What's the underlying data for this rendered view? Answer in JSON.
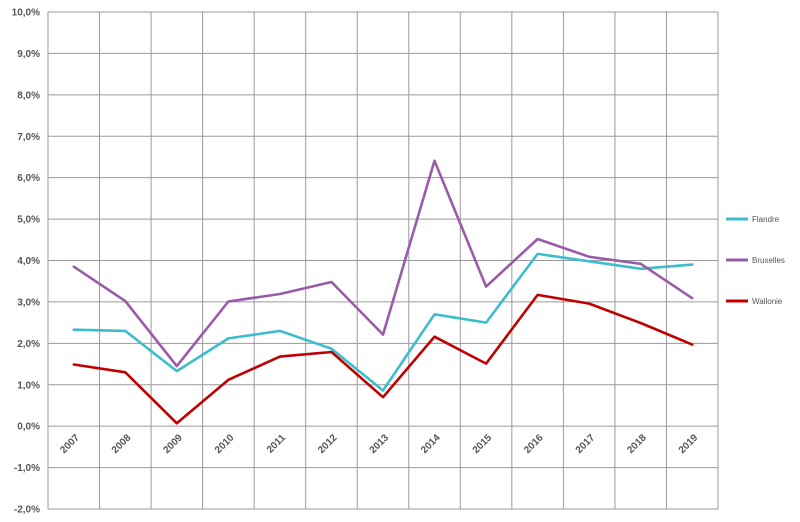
{
  "chart_data": {
    "type": "line",
    "categories": [
      "2007",
      "2008",
      "2009",
      "2010",
      "2011",
      "2012",
      "2013",
      "2014",
      "2015",
      "2016",
      "2017",
      "2018",
      "2019"
    ],
    "series": [
      {
        "name": "Flandre",
        "color": "#3dbccb",
        "values": [
          2.33,
          2.3,
          1.33,
          2.12,
          2.3,
          1.87,
          0.86,
          2.7,
          2.5,
          4.16,
          3.98,
          3.8,
          3.9
        ]
      },
      {
        "name": "Bruxelles",
        "color": "#9a5ba8",
        "values": [
          3.85,
          3.02,
          1.45,
          3.01,
          3.19,
          3.48,
          2.21,
          6.41,
          3.37,
          4.52,
          4.09,
          3.92,
          3.09
        ]
      },
      {
        "name": "Wallonie",
        "color": "#c00000",
        "values": [
          1.49,
          1.3,
          0.07,
          1.12,
          1.68,
          1.79,
          0.7,
          2.16,
          1.51,
          3.17,
          2.96,
          2.49,
          1.97
        ]
      }
    ],
    "yticks": [
      "-2,0%",
      "-1,0%",
      "0,0%",
      "1,0%",
      "2,0%",
      "3,0%",
      "4,0%",
      "5,0%",
      "6,0%",
      "7,0%",
      "8,0%",
      "9,0%",
      "10,0%"
    ],
    "ylim": [
      -2,
      10
    ],
    "title": "",
    "xlabel": "",
    "ylabel": "",
    "grid": true,
    "legend": "right"
  }
}
